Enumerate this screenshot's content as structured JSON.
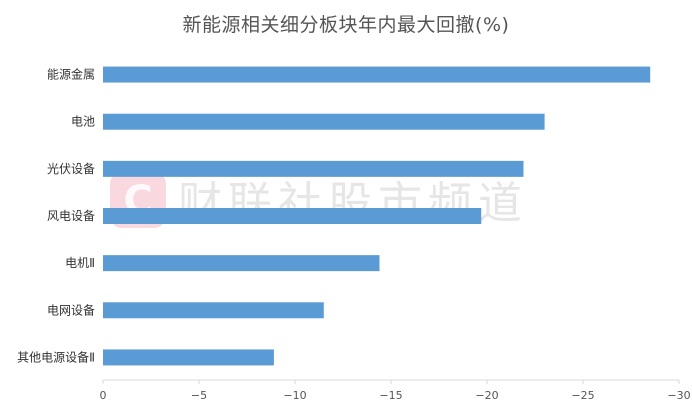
{
  "chart_data": {
    "type": "bar",
    "orientation": "horizontal",
    "title": "新能源相关细分板块年内最大回撤(%)",
    "categories": [
      "能源金属",
      "电池",
      "光伏设备",
      "风电设备",
      "电机Ⅱ",
      "电网设备",
      "其他电源设备Ⅱ"
    ],
    "values": [
      -28.5,
      -23.0,
      -21.9,
      -19.7,
      -14.4,
      -11.5,
      -8.9
    ],
    "xlim": [
      0,
      -30
    ],
    "xticks": [
      0,
      -5,
      -10,
      -15,
      -20,
      -25,
      -30
    ],
    "xtick_labels": [
      "0",
      "−5",
      "−10",
      "−15",
      "−20",
      "−25",
      "−30"
    ],
    "xlabel": "",
    "ylabel": "",
    "grid": false,
    "legend": "none",
    "bar_color": "#5b9bd5"
  },
  "watermark": {
    "text": "财联社股市频道",
    "logo_letter": "C",
    "logo_color": "#f4b3bf"
  }
}
